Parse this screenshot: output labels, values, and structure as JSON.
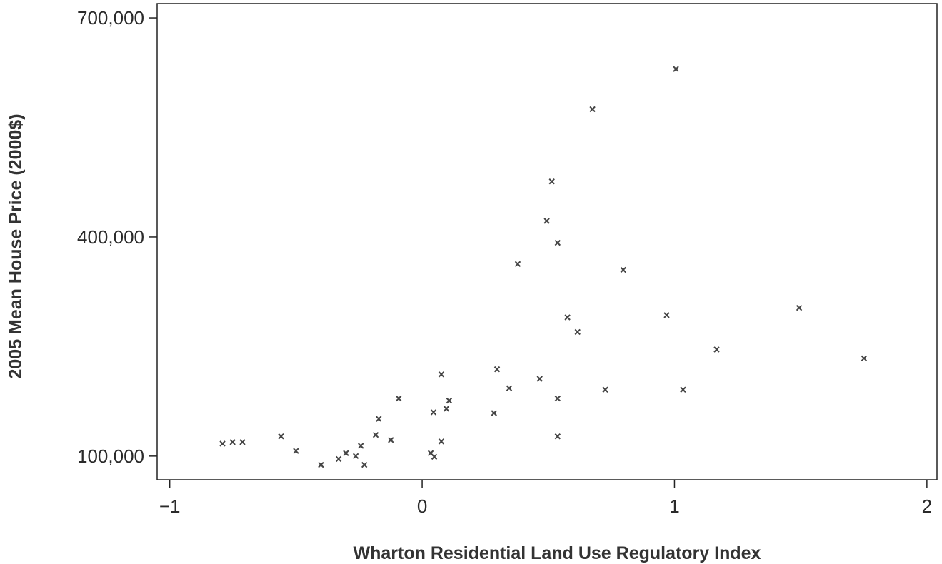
{
  "chart_data": {
    "type": "scatter",
    "x_label": "Wharton Residential Land Use Regulatory Index",
    "y_label": "2005 Mean House Price (2000$)",
    "x": [
      1.006,
      0.675,
      0.514,
      0.494,
      0.537,
      0.379,
      0.797,
      1.494,
      0.969,
      0.576,
      0.616,
      1.167,
      1.751,
      0.076,
      0.297,
      0.466,
      0.345,
      0.726,
      1.034,
      0.537,
      -0.093,
      0.107,
      0.096,
      0.045,
      0.285,
      -0.172,
      -0.184,
      0.537,
      -0.559,
      -0.124,
      0.076,
      -0.712,
      -0.751,
      -0.791,
      -0.243,
      -0.5,
      -0.302,
      0.034,
      -0.263,
      -0.331,
      0.048,
      -0.401,
      -0.229
    ],
    "values": [
      630000,
      575000,
      476000,
      422000,
      392000,
      363000,
      355000,
      303000,
      293000,
      290000,
      270000,
      246000,
      234000,
      212000,
      219000,
      206000,
      193000,
      191000,
      191000,
      179000,
      179000,
      176000,
      165000,
      160000,
      159000,
      151000,
      129000,
      127000,
      127000,
      122000,
      120000,
      119000,
      119000,
      117000,
      114000,
      107000,
      104000,
      104000,
      100000,
      96000,
      99000,
      88000,
      88000
    ],
    "color": "#444444",
    "xlim": [
      -1.05,
      2.04
    ],
    "ylim": [
      67600,
      719600
    ],
    "xticks": [
      {
        "value": -1,
        "label": "−1"
      },
      0,
      1,
      2
    ],
    "yticks": [
      {
        "value": 100000,
        "label": "100,000"
      },
      {
        "value": 400000,
        "label": "400,000"
      },
      {
        "value": 700000,
        "label": "700,000"
      }
    ]
  }
}
